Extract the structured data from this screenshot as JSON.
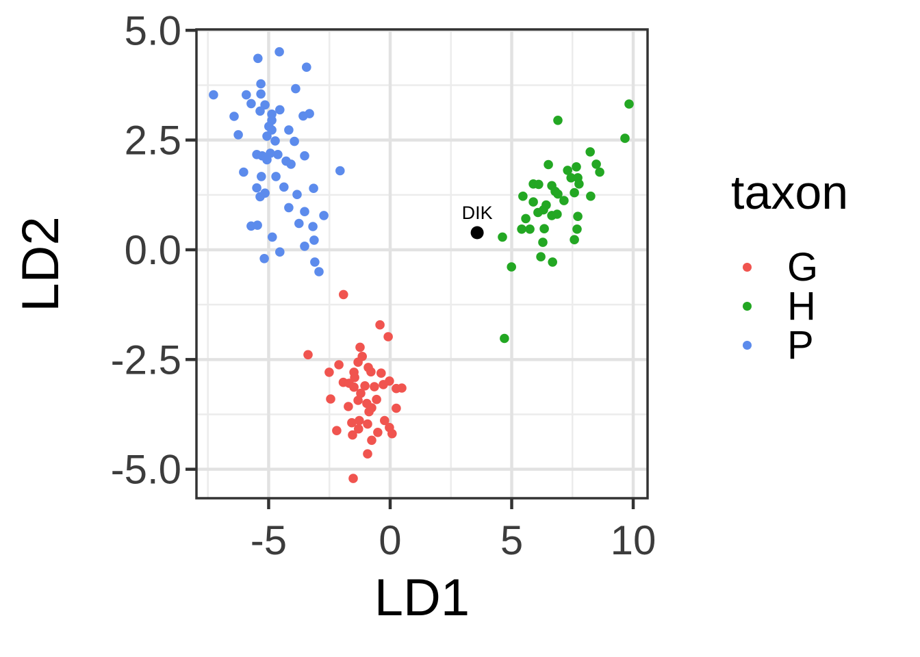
{
  "chart_data": {
    "type": "scatter",
    "title": "",
    "xlabel": "LD1",
    "ylabel": "LD2",
    "xlim": [
      -7.97,
      10.59
    ],
    "ylim": [
      -5.66,
      5.02
    ],
    "grid": true,
    "x_ticks": [
      -5,
      0,
      5,
      10
    ],
    "x_tick_labels": [
      "-5",
      "0",
      "5",
      "10"
    ],
    "x_minor_ticks": [
      -7.5,
      -2.5,
      2.5,
      7.5
    ],
    "y_ticks": [
      5.0,
      2.5,
      0.0,
      -2.5,
      -5.0
    ],
    "y_tick_labels": [
      "5.0",
      "2.5",
      "0.0",
      "-2.5",
      "-5.0"
    ],
    "y_minor_ticks": [
      3.75,
      1.25,
      -1.25,
      -3.75
    ],
    "legend_title": "taxon",
    "legend_position": "right",
    "series": [
      {
        "name": "G",
        "color": "#F0544F",
        "points": [
          [
            -1.92,
            -1.02
          ],
          [
            -0.42,
            -1.71
          ],
          [
            -0.08,
            -1.98
          ],
          [
            -3.38,
            -2.39
          ],
          [
            -1.24,
            -2.22
          ],
          [
            -1.15,
            -2.43
          ],
          [
            -2.11,
            -2.62
          ],
          [
            -1.32,
            -2.56
          ],
          [
            -2.51,
            -2.79
          ],
          [
            -0.9,
            -2.68
          ],
          [
            -0.79,
            -2.78
          ],
          [
            -1.49,
            -2.79
          ],
          [
            -1.93,
            -3.02
          ],
          [
            -1.69,
            -3.04
          ],
          [
            -1.46,
            -2.91
          ],
          [
            -0.37,
            -2.81
          ],
          [
            -0.03,
            -2.99
          ],
          [
            -1.49,
            -3.13
          ],
          [
            -1.04,
            -3.1
          ],
          [
            -0.65,
            -3.12
          ],
          [
            -0.28,
            -3.07
          ],
          [
            0.25,
            -3.16
          ],
          [
            0.48,
            -3.15
          ],
          [
            -2.45,
            -3.4
          ],
          [
            -1.21,
            -3.27
          ],
          [
            -1.32,
            -3.43
          ],
          [
            -0.56,
            -3.41
          ],
          [
            -1.72,
            -3.57
          ],
          [
            -0.96,
            -3.5
          ],
          [
            -0.87,
            -3.69
          ],
          [
            -0.76,
            -3.6
          ],
          [
            0.25,
            -3.61
          ],
          [
            -1.58,
            -3.94
          ],
          [
            -1.27,
            -3.89
          ],
          [
            -0.93,
            -3.97
          ],
          [
            -2.2,
            -4.12
          ],
          [
            -1.55,
            -4.22
          ],
          [
            -1.3,
            -4.08
          ],
          [
            -0.23,
            -3.89
          ],
          [
            -0.03,
            -4.05
          ],
          [
            0.08,
            -4.19
          ],
          [
            -0.51,
            -4.16
          ],
          [
            -0.76,
            -4.34
          ],
          [
            -0.93,
            -4.65
          ],
          [
            -1.52,
            -5.21
          ]
        ]
      },
      {
        "name": "H",
        "color": "#23A723",
        "points": [
          [
            9.83,
            3.32
          ],
          [
            6.9,
            2.95
          ],
          [
            9.66,
            2.54
          ],
          [
            8.23,
            2.23
          ],
          [
            8.48,
            1.95
          ],
          [
            6.51,
            1.94
          ],
          [
            7.66,
            1.89
          ],
          [
            7.3,
            1.81
          ],
          [
            8.62,
            1.77
          ],
          [
            7.44,
            1.64
          ],
          [
            7.72,
            1.64
          ],
          [
            5.89,
            1.5
          ],
          [
            6.11,
            1.49
          ],
          [
            6.65,
            1.46
          ],
          [
            7.77,
            1.5
          ],
          [
            6.79,
            1.33
          ],
          [
            6.9,
            1.27
          ],
          [
            7.58,
            1.3
          ],
          [
            5.46,
            1.22
          ],
          [
            8.25,
            1.22
          ],
          [
            7.15,
            1.12
          ],
          [
            5.89,
            1.09
          ],
          [
            6.42,
            1.02
          ],
          [
            6.31,
            0.91
          ],
          [
            6.08,
            0.85
          ],
          [
            6.65,
            0.78
          ],
          [
            6.87,
            0.81
          ],
          [
            5.58,
            0.71
          ],
          [
            7.72,
            0.76
          ],
          [
            4.62,
            0.29
          ],
          [
            5.41,
            0.47
          ],
          [
            5.75,
            0.47
          ],
          [
            6.34,
            0.48
          ],
          [
            6.28,
            0.17
          ],
          [
            7.69,
            0.47
          ],
          [
            7.58,
            0.23
          ],
          [
            6.2,
            -0.16
          ],
          [
            6.68,
            -0.28
          ],
          [
            4.99,
            -0.39
          ],
          [
            4.7,
            -2.02
          ]
        ]
      },
      {
        "name": "P",
        "color": "#5C8BEC",
        "points": [
          [
            -4.56,
            4.51
          ],
          [
            -5.44,
            4.36
          ],
          [
            -3.44,
            4.16
          ],
          [
            -5.32,
            3.78
          ],
          [
            -3.89,
            3.67
          ],
          [
            -7.27,
            3.53
          ],
          [
            -5.92,
            3.53
          ],
          [
            -5.32,
            3.55
          ],
          [
            -5.72,
            3.33
          ],
          [
            -5.15,
            3.3
          ],
          [
            -5.35,
            3.16
          ],
          [
            -4.54,
            3.19
          ],
          [
            -6.42,
            3.04
          ],
          [
            -3.58,
            3.05
          ],
          [
            -3.32,
            3.1
          ],
          [
            -4.87,
            3.09
          ],
          [
            -4.87,
            2.95
          ],
          [
            -4.99,
            2.81
          ],
          [
            -4.87,
            2.73
          ],
          [
            -4.17,
            2.73
          ],
          [
            -6.25,
            2.62
          ],
          [
            -5.07,
            2.59
          ],
          [
            -4.73,
            2.48
          ],
          [
            -3.94,
            2.47
          ],
          [
            -5.49,
            2.17
          ],
          [
            -5.27,
            2.14
          ],
          [
            -4.93,
            2.2
          ],
          [
            -4.62,
            2.17
          ],
          [
            -5.07,
            2.05
          ],
          [
            -4.28,
            2.02
          ],
          [
            -4.08,
            1.95
          ],
          [
            -3.52,
            2.14
          ],
          [
            -6.03,
            1.77
          ],
          [
            -5.3,
            1.67
          ],
          [
            -4.7,
            1.67
          ],
          [
            -2.06,
            1.8
          ],
          [
            -5.49,
            1.41
          ],
          [
            -4.37,
            1.43
          ],
          [
            -3.15,
            1.4
          ],
          [
            -5.15,
            1.29
          ],
          [
            -5.35,
            1.21
          ],
          [
            -3.83,
            1.26
          ],
          [
            -4.17,
            0.96
          ],
          [
            -3.52,
            0.87
          ],
          [
            -2.73,
            0.78
          ],
          [
            -3.75,
            0.6
          ],
          [
            -3.18,
            0.53
          ],
          [
            -5.72,
            0.54
          ],
          [
            -5.46,
            0.56
          ],
          [
            -4.85,
            0.29
          ],
          [
            -3.13,
            0.22
          ],
          [
            -3.52,
            0.08
          ],
          [
            -4.54,
            -0.05
          ],
          [
            -5.18,
            -0.2
          ],
          [
            -3.1,
            -0.28
          ],
          [
            -2.93,
            -0.5
          ]
        ]
      }
    ],
    "annotations": [
      {
        "label": "DIK",
        "x": 3.58,
        "y": 0.39,
        "color": "#000000"
      }
    ]
  },
  "style": {
    "panel_background": "#FFFFFF",
    "panel_border_color": "#333333",
    "major_grid_color": "#E2E2E2",
    "minor_grid_color": "#ECECEC",
    "tick_color": "#333333",
    "tick_label_color": "#3C3C3C"
  }
}
